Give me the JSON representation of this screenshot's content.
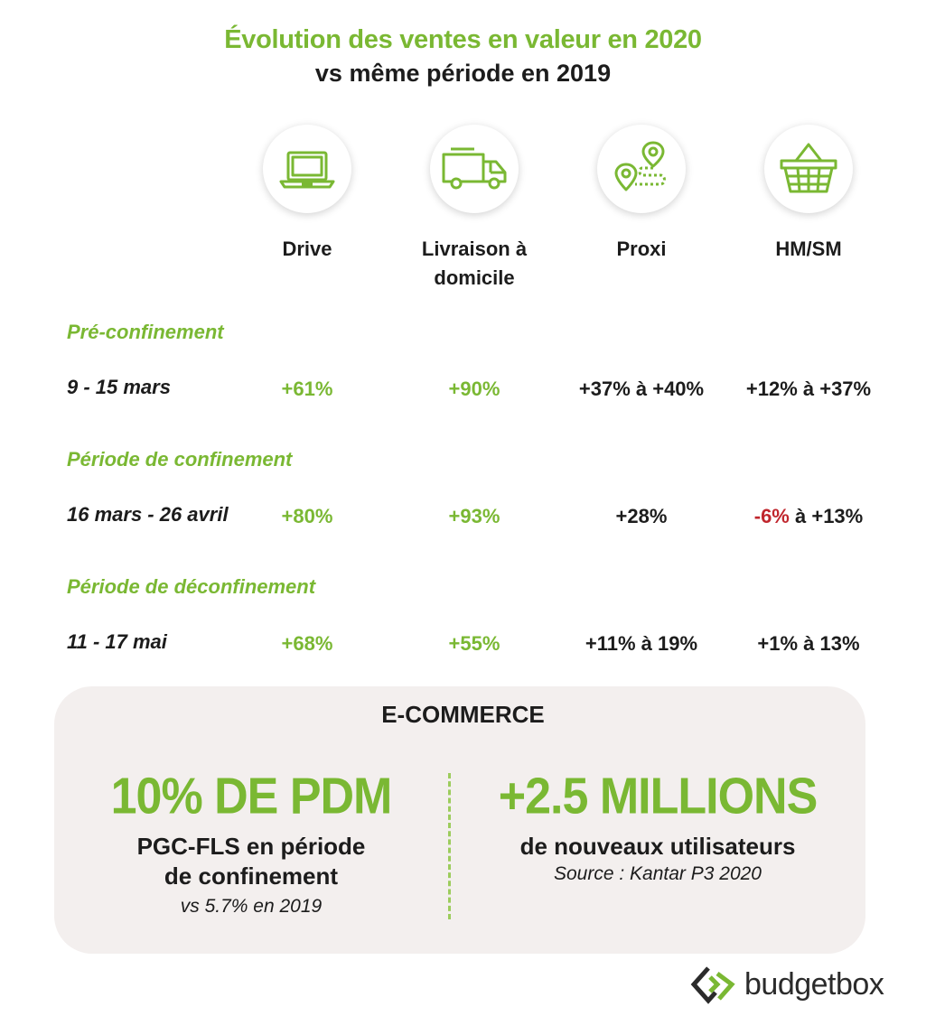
{
  "title": {
    "main": "Évolution des ventes en valeur en 2020",
    "sub": "vs même période en 2019"
  },
  "colors": {
    "accent": "#7ab833",
    "text": "#1c1c1c",
    "negative": "#c0262d",
    "panel": "#f3efee"
  },
  "columns": [
    {
      "label_line1": "Drive",
      "label_line2": "",
      "icon": "laptop-icon"
    },
    {
      "label_line1": "Livraison à",
      "label_line2": "domicile",
      "icon": "delivery-truck-icon"
    },
    {
      "label_line1": "Proxi",
      "label_line2": "",
      "icon": "map-pin-route-icon"
    },
    {
      "label_line1": "HM/SM",
      "label_line2": "",
      "icon": "shopping-basket-icon"
    }
  ],
  "sections": [
    {
      "label": "Pré-confinement",
      "row_label": "9 - 15 mars",
      "values": [
        "+61%",
        "+90%",
        "+37% à +40%",
        "+12% à +37%"
      ]
    },
    {
      "label": "Période de confinement",
      "row_label": "16 mars - 26 avril",
      "values": [
        "+80%",
        "+93%",
        "+28%",
        "à +13%"
      ],
      "hm_negative": "-6%"
    },
    {
      "label": "Période de déconfinement",
      "row_label": "11 - 17 mai",
      "values": [
        "+68%",
        "+55%",
        "+11% à 19%",
        "+1% à 13%"
      ]
    }
  ],
  "ecommerce": {
    "title": "E-COMMERCE",
    "left": {
      "stat": "10% DE PDM",
      "desc_line1": "PGC-FLS en période",
      "desc_line2": "de confinement",
      "note": "vs 5.7% en 2019"
    },
    "right": {
      "stat": "+2.5 MILLIONS",
      "desc_line1": "de nouveaux utilisateurs",
      "note": "Source : Kantar P3 2020"
    }
  },
  "logo": {
    "text_part1": "budget",
    "text_part2": "box",
    "icon": "budgetbox-logo-icon"
  }
}
